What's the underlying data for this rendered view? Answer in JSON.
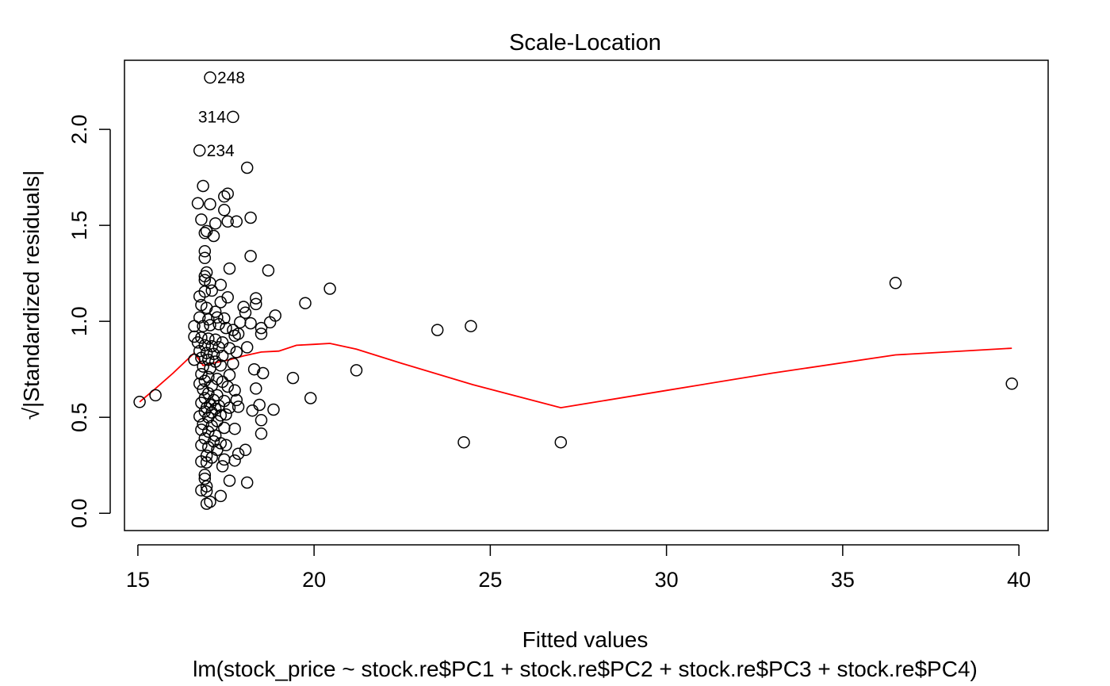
{
  "chart_data": {
    "type": "scatter",
    "title": "Scale-Location",
    "xlabel": "Fitted values",
    "sublabel": "lm(stock_price ~ stock.re$PC1 + stock.re$PC2 + stock.re$PC3 + stock.re$PC4)",
    "ylabel": "√|Standardized residuals|",
    "xlim": [
      14.62,
      40.83
    ],
    "ylim": [
      -0.09,
      2.36
    ],
    "xticks": [
      15,
      20,
      25,
      30,
      35,
      40
    ],
    "yticks": [
      0.0,
      0.5,
      1.0,
      1.5,
      2.0
    ],
    "ytick_labels": [
      "0.0",
      "0.5",
      "1.0",
      "1.5",
      "2.0"
    ],
    "grid": false,
    "colors": {
      "points": "#000000",
      "smooth_line": "#ff0000",
      "axes": "#000000"
    },
    "labeled_points": [
      {
        "label": "248",
        "x": 17.05,
        "y": 2.27,
        "side": "right"
      },
      {
        "label": "314",
        "x": 17.7,
        "y": 2.065,
        "side": "left"
      },
      {
        "label": "234",
        "x": 16.75,
        "y": 1.89,
        "side": "right"
      }
    ],
    "smooth_line": [
      [
        15.05,
        0.58
      ],
      [
        15.5,
        0.65
      ],
      [
        16.0,
        0.73
      ],
      [
        16.6,
        0.835
      ],
      [
        16.85,
        0.77
      ],
      [
        17.2,
        0.785
      ],
      [
        17.6,
        0.8
      ],
      [
        18.0,
        0.82
      ],
      [
        18.5,
        0.84
      ],
      [
        19.0,
        0.845
      ],
      [
        19.5,
        0.875
      ],
      [
        20.0,
        0.88
      ],
      [
        20.45,
        0.885
      ],
      [
        21.2,
        0.855
      ],
      [
        22.5,
        0.78
      ],
      [
        24.5,
        0.67
      ],
      [
        27.0,
        0.55
      ],
      [
        30.0,
        0.64
      ],
      [
        33.0,
        0.73
      ],
      [
        36.5,
        0.825
      ],
      [
        39.8,
        0.86
      ]
    ],
    "points": [
      [
        15.05,
        0.58
      ],
      [
        15.5,
        0.615
      ],
      [
        19.4,
        0.705
      ],
      [
        19.75,
        1.095
      ],
      [
        19.9,
        0.6
      ],
      [
        20.45,
        1.17
      ],
      [
        21.2,
        0.745
      ],
      [
        23.5,
        0.955
      ],
      [
        24.25,
        0.37
      ],
      [
        24.45,
        0.975
      ],
      [
        27.0,
        0.37
      ],
      [
        36.5,
        1.2
      ],
      [
        39.8,
        0.675
      ],
      [
        17.05,
        2.27
      ],
      [
        17.7,
        2.065
      ],
      [
        16.75,
        1.89
      ],
      [
        18.1,
        1.8
      ],
      [
        16.85,
        1.705
      ],
      [
        16.7,
        1.615
      ],
      [
        17.05,
        1.61
      ],
      [
        17.45,
        1.65
      ],
      [
        17.55,
        1.665
      ],
      [
        17.45,
        1.58
      ],
      [
        16.8,
        1.53
      ],
      [
        17.55,
        1.52
      ],
      [
        17.8,
        1.52
      ],
      [
        18.2,
        1.54
      ],
      [
        17.2,
        1.51
      ],
      [
        16.9,
        1.46
      ],
      [
        16.95,
        1.47
      ],
      [
        17.15,
        1.445
      ],
      [
        16.9,
        1.365
      ],
      [
        16.9,
        1.33
      ],
      [
        18.2,
        1.34
      ],
      [
        17.6,
        1.275
      ],
      [
        18.7,
        1.265
      ],
      [
        16.95,
        1.255
      ],
      [
        16.9,
        1.235
      ],
      [
        16.9,
        1.215
      ],
      [
        17.05,
        1.2
      ],
      [
        17.1,
        1.16
      ],
      [
        16.9,
        1.155
      ],
      [
        17.35,
        1.19
      ],
      [
        16.75,
        1.13
      ],
      [
        17.55,
        1.125
      ],
      [
        17.35,
        1.1
      ],
      [
        18.35,
        1.12
      ],
      [
        18.35,
        1.09
      ],
      [
        18.0,
        1.075
      ],
      [
        16.8,
        1.085
      ],
      [
        16.95,
        1.07
      ],
      [
        17.2,
        1.05
      ],
      [
        18.05,
        1.045
      ],
      [
        18.9,
        1.03
      ],
      [
        16.75,
        1.02
      ],
      [
        17.0,
        1.01
      ],
      [
        17.25,
        1.02
      ],
      [
        17.45,
        1.015
      ],
      [
        17.9,
        0.995
      ],
      [
        18.75,
        0.995
      ],
      [
        18.2,
        0.99
      ],
      [
        16.6,
        0.975
      ],
      [
        16.85,
        0.975
      ],
      [
        17.05,
        0.98
      ],
      [
        17.3,
        0.985
      ],
      [
        17.5,
        0.965
      ],
      [
        17.7,
        0.955
      ],
      [
        18.5,
        0.965
      ],
      [
        18.5,
        0.935
      ],
      [
        17.85,
        0.935
      ],
      [
        17.75,
        0.925
      ],
      [
        16.6,
        0.92
      ],
      [
        16.8,
        0.915
      ],
      [
        17.0,
        0.91
      ],
      [
        17.2,
        0.905
      ],
      [
        17.4,
        0.89
      ],
      [
        16.7,
        0.89
      ],
      [
        16.9,
        0.875
      ],
      [
        17.1,
        0.87
      ],
      [
        17.3,
        0.865
      ],
      [
        17.6,
        0.86
      ],
      [
        18.1,
        0.865
      ],
      [
        17.8,
        0.84
      ],
      [
        16.75,
        0.845
      ],
      [
        16.95,
        0.835
      ],
      [
        17.15,
        0.83
      ],
      [
        17.4,
        0.82
      ],
      [
        16.8,
        0.81
      ],
      [
        17.0,
        0.8
      ],
      [
        17.2,
        0.79
      ],
      [
        16.6,
        0.8
      ],
      [
        17.7,
        0.78
      ],
      [
        17.35,
        0.77
      ],
      [
        16.85,
        0.765
      ],
      [
        17.05,
        0.755
      ],
      [
        18.3,
        0.75
      ],
      [
        18.55,
        0.73
      ],
      [
        17.6,
        0.72
      ],
      [
        16.8,
        0.725
      ],
      [
        17.0,
        0.71
      ],
      [
        17.25,
        0.7
      ],
      [
        16.9,
        0.69
      ],
      [
        17.4,
        0.685
      ],
      [
        16.75,
        0.675
      ],
      [
        17.1,
        0.665
      ],
      [
        17.55,
        0.66
      ],
      [
        18.35,
        0.65
      ],
      [
        16.85,
        0.645
      ],
      [
        17.75,
        0.64
      ],
      [
        17.0,
        0.625
      ],
      [
        17.25,
        0.615
      ],
      [
        16.9,
        0.6
      ],
      [
        17.15,
        0.59
      ],
      [
        17.45,
        0.585
      ],
      [
        17.8,
        0.59
      ],
      [
        16.8,
        0.575
      ],
      [
        17.05,
        0.565
      ],
      [
        17.3,
        0.56
      ],
      [
        18.45,
        0.565
      ],
      [
        16.95,
        0.55
      ],
      [
        17.2,
        0.545
      ],
      [
        17.6,
        0.55
      ],
      [
        17.85,
        0.555
      ],
      [
        18.85,
        0.54
      ],
      [
        18.25,
        0.535
      ],
      [
        16.9,
        0.53
      ],
      [
        17.1,
        0.525
      ],
      [
        17.5,
        0.515
      ],
      [
        17.35,
        0.51
      ],
      [
        16.75,
        0.505
      ],
      [
        17.0,
        0.5
      ],
      [
        18.5,
        0.485
      ],
      [
        17.25,
        0.48
      ],
      [
        16.85,
        0.465
      ],
      [
        17.1,
        0.455
      ],
      [
        17.45,
        0.445
      ],
      [
        17.75,
        0.44
      ],
      [
        16.8,
        0.435
      ],
      [
        17.0,
        0.425
      ],
      [
        18.5,
        0.415
      ],
      [
        17.2,
        0.405
      ],
      [
        16.9,
        0.39
      ],
      [
        17.15,
        0.375
      ],
      [
        17.35,
        0.365
      ],
      [
        17.5,
        0.355
      ],
      [
        16.8,
        0.355
      ],
      [
        17.0,
        0.345
      ],
      [
        17.25,
        0.33
      ],
      [
        18.05,
        0.33
      ],
      [
        17.85,
        0.31
      ],
      [
        16.95,
        0.3
      ],
      [
        17.1,
        0.29
      ],
      [
        17.45,
        0.28
      ],
      [
        17.75,
        0.275
      ],
      [
        16.8,
        0.27
      ],
      [
        16.95,
        0.265
      ],
      [
        17.4,
        0.245
      ],
      [
        16.9,
        0.2
      ],
      [
        16.9,
        0.18
      ],
      [
        17.6,
        0.17
      ],
      [
        18.1,
        0.16
      ],
      [
        16.95,
        0.14
      ],
      [
        16.8,
        0.12
      ],
      [
        16.95,
        0.115
      ],
      [
        17.35,
        0.09
      ],
      [
        17.05,
        0.06
      ],
      [
        16.95,
        0.05
      ]
    ]
  }
}
